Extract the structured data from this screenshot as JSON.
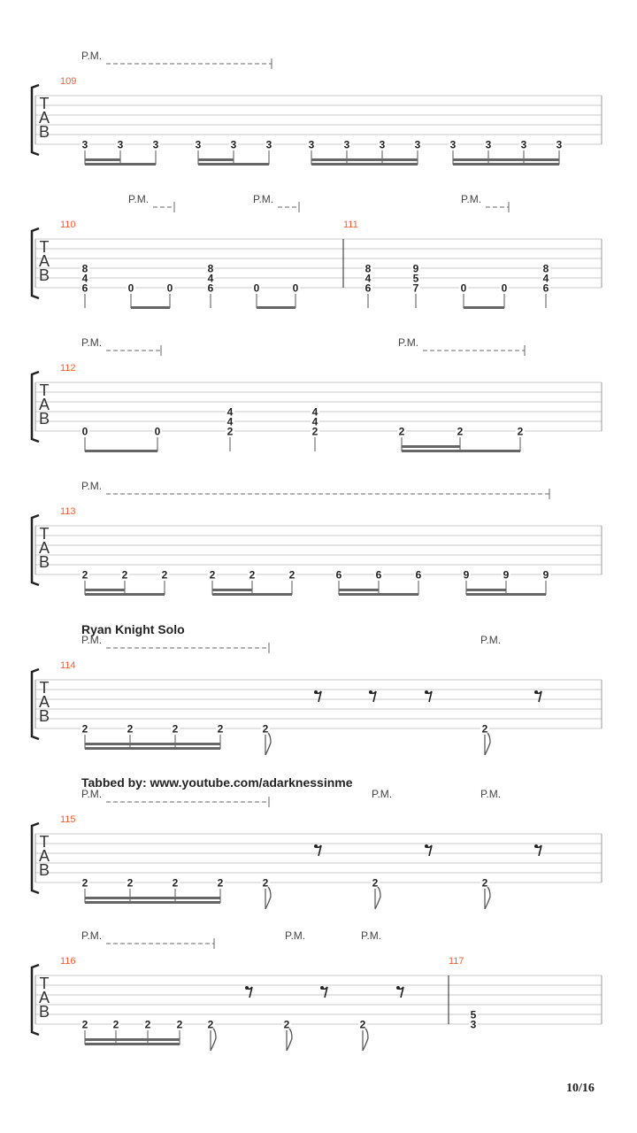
{
  "colors": {
    "measure_number": "#f06030",
    "staff_line": "#c8c8c8",
    "text": "#222222",
    "beam": "#666666"
  },
  "clef": {
    "letters": [
      "T",
      "A",
      "B"
    ]
  },
  "annotations": {
    "solo_title": "Ryan Knight Solo",
    "tabbed_by": "Tabbed by: www.youtube.com/adarknessinme"
  },
  "page_number": "10/16",
  "systems": [
    {
      "measures": [
        "109"
      ],
      "pm": [
        "P.M."
      ],
      "events": [
        {
          "s6": "3"
        },
        {
          "s6": "3"
        },
        {
          "s6": "3"
        },
        {
          "s6": "3"
        },
        {
          "s6": "3"
        },
        {
          "s6": "3"
        },
        {
          "s6": "3"
        },
        {
          "s6": "3"
        },
        {
          "s6": "3"
        },
        {
          "s6": "3"
        },
        {
          "s6": "3"
        },
        {
          "s6": "3"
        },
        {
          "s6": "3"
        },
        {
          "s6": "3"
        }
      ]
    },
    {
      "measures": [
        "110",
        "111"
      ],
      "pm": [
        "P.M.",
        "P.M.",
        "P.M."
      ],
      "events": [
        {
          "s4": "8",
          "s5": "4",
          "s6": "6"
        },
        {
          "s6": "0"
        },
        {
          "s6": "0"
        },
        {
          "s4": "8",
          "s5": "4",
          "s6": "6"
        },
        {
          "s6": "0"
        },
        {
          "s6": "0"
        },
        {
          "s4": "8",
          "s5": "4",
          "s6": "6"
        },
        {
          "s4": "9",
          "s5": "5",
          "s6": "7"
        },
        {
          "s6": "0"
        },
        {
          "s6": "0"
        },
        {
          "s4": "8",
          "s5": "4",
          "s6": "6"
        }
      ]
    },
    {
      "measures": [
        "112"
      ],
      "pm": [
        "P.M.",
        "P.M."
      ],
      "events": [
        {
          "s6": "0"
        },
        {
          "s6": "0"
        },
        {
          "s4": "4",
          "s5": "4",
          "s6": "2"
        },
        {
          "s4": "4",
          "s5": "4",
          "s6": "2"
        },
        {
          "s6": "2"
        },
        {
          "s6": "2"
        },
        {
          "s6": "2"
        }
      ]
    },
    {
      "measures": [
        "113"
      ],
      "pm": [
        "P.M."
      ],
      "events": [
        {
          "s6": "2"
        },
        {
          "s6": "2"
        },
        {
          "s6": "2"
        },
        {
          "s6": "2"
        },
        {
          "s6": "2"
        },
        {
          "s6": "2"
        },
        {
          "s6": "6"
        },
        {
          "s6": "6"
        },
        {
          "s6": "6"
        },
        {
          "s6": "9"
        },
        {
          "s6": "9"
        },
        {
          "s6": "9"
        }
      ]
    },
    {
      "measures": [
        "114"
      ],
      "pm": [
        "P.M.",
        "P.M."
      ],
      "events": [
        {
          "s6": "2"
        },
        {
          "s6": "2"
        },
        {
          "s6": "2"
        },
        {
          "s6": "2"
        },
        {
          "s6": "2"
        },
        {
          "rest": "eighth"
        },
        {
          "rest": "eighth"
        },
        {
          "rest": "eighth"
        },
        {
          "s6": "2"
        },
        {
          "rest": "eighth"
        }
      ]
    },
    {
      "measures": [
        "115"
      ],
      "pm": [
        "P.M.",
        "P.M.",
        "P.M."
      ],
      "events": [
        {
          "s6": "2"
        },
        {
          "s6": "2"
        },
        {
          "s6": "2"
        },
        {
          "s6": "2"
        },
        {
          "s6": "2"
        },
        {
          "rest": "eighth"
        },
        {
          "s6": "2"
        },
        {
          "rest": "eighth"
        },
        {
          "s6": "2"
        },
        {
          "rest": "eighth"
        }
      ]
    },
    {
      "measures": [
        "116",
        "117"
      ],
      "pm": [
        "P.M.",
        "P.M.",
        "P.M."
      ],
      "events": [
        {
          "s6": "2"
        },
        {
          "s6": "2"
        },
        {
          "s6": "2"
        },
        {
          "s6": "2"
        },
        {
          "s6": "2"
        },
        {
          "rest": "eighth"
        },
        {
          "s6": "2"
        },
        {
          "rest": "eighth"
        },
        {
          "s6": "2"
        },
        {
          "rest": "eighth"
        },
        {
          "s5": "5",
          "s6": "3"
        }
      ]
    }
  ]
}
